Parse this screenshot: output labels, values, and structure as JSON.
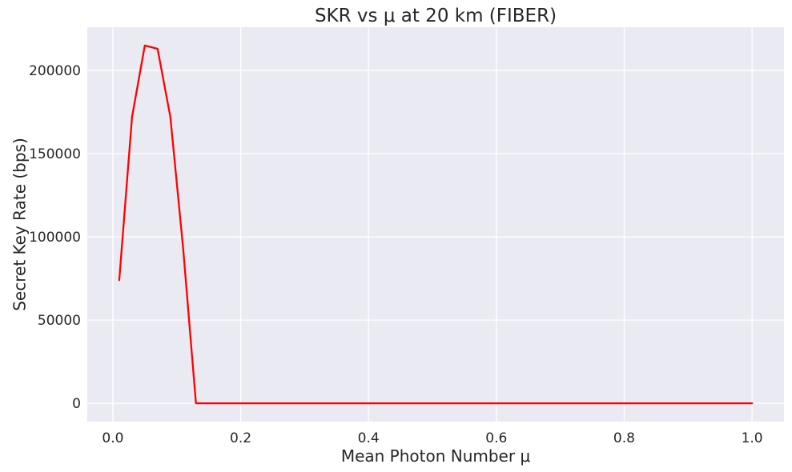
{
  "chart_data": {
    "type": "line",
    "title": "SKR vs μ at 20 km (FIBER)",
    "xlabel": "Mean Photon Number μ",
    "ylabel": "Secret Key Rate (bps)",
    "xlim": [
      -0.04,
      1.05
    ],
    "ylim": [
      -11000,
      226000
    ],
    "xticks": [
      0.0,
      0.2,
      0.4,
      0.6,
      0.8,
      1.0
    ],
    "xtick_labels": [
      "0.0",
      "0.2",
      "0.4",
      "0.6",
      "0.8",
      "1.0"
    ],
    "yticks": [
      0,
      50000,
      100000,
      150000,
      200000
    ],
    "ytick_labels": [
      "0",
      "50000",
      "100000",
      "150000",
      "200000"
    ],
    "grid": true,
    "legend": "none",
    "series": [
      {
        "color": "#ff0000",
        "x": [
          0.01,
          0.03,
          0.05,
          0.07,
          0.09,
          0.11,
          0.13,
          0.15,
          0.2,
          0.3,
          0.4,
          0.5,
          0.6,
          0.7,
          0.8,
          0.9,
          1.0
        ],
        "y": [
          74000,
          172000,
          215000,
          213000,
          172000,
          93000,
          0,
          0,
          0,
          0,
          0,
          0,
          0,
          0,
          0,
          0,
          0
        ]
      }
    ]
  }
}
